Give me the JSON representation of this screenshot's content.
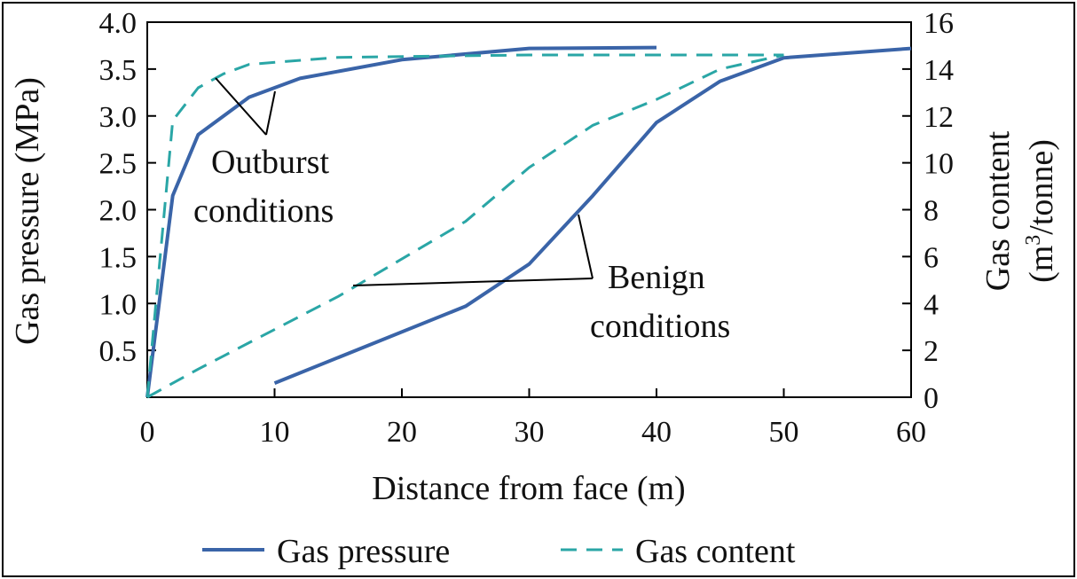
{
  "chart_data": {
    "type": "line",
    "xlabel": "Distance from face (m)",
    "ylabel": "Gas pressure (MPa)",
    "y2label_line1": "Gas content",
    "y2label_line2_prefix": "(m",
    "y2label_line2_sup": "3",
    "y2label_line2_suffix": "/tonne)",
    "xlim": [
      0,
      60
    ],
    "ylim": [
      0,
      4.0
    ],
    "y2lim": [
      0,
      16
    ],
    "x_ticks": [
      "0",
      "10",
      "20",
      "30",
      "40",
      "50",
      "60"
    ],
    "y_ticks": [
      "0.5",
      "1.0",
      "1.5",
      "2.0",
      "2.5",
      "3.0",
      "3.5",
      "4.0"
    ],
    "y2_ticks": [
      "0",
      "2",
      "4",
      "6",
      "8",
      "10",
      "12",
      "14",
      "16"
    ],
    "grid": false,
    "legend": {
      "placement": "bottom",
      "entries": [
        {
          "label": "Gas pressure",
          "style": "solid",
          "color": "#3a64a8"
        },
        {
          "label": "Gas content",
          "style": "dashed",
          "color": "#2aa6a6"
        }
      ]
    },
    "annotations": [
      {
        "line1": "Outburst",
        "line2": "conditions"
      },
      {
        "line1": "Benign",
        "line2": "conditions"
      }
    ],
    "series": [
      {
        "group": "outburst",
        "kind": "Gas pressure",
        "axis": "left",
        "color": "#3a64a8",
        "style": "solid",
        "x": [
          0,
          2,
          4,
          8,
          12,
          20,
          30,
          40
        ],
        "y": [
          0,
          2.15,
          2.8,
          3.2,
          3.4,
          3.6,
          3.72,
          3.73
        ]
      },
      {
        "group": "outburst",
        "kind": "Gas content",
        "axis": "right",
        "color": "#2aa6a6",
        "style": "dashed",
        "x": [
          0,
          2,
          4,
          6,
          8,
          15,
          30,
          50
        ],
        "y": [
          0,
          11.8,
          13.2,
          13.8,
          14.2,
          14.5,
          14.6,
          14.6
        ]
      },
      {
        "group": "benign",
        "kind": "Gas pressure",
        "axis": "left",
        "color": "#3a64a8",
        "style": "solid",
        "x": [
          10,
          25,
          30,
          35,
          40,
          45,
          50,
          60
        ],
        "y": [
          0.15,
          0.97,
          1.42,
          2.15,
          2.93,
          3.37,
          3.62,
          3.72
        ]
      },
      {
        "group": "benign",
        "kind": "Gas content",
        "axis": "right",
        "color": "#2aa6a6",
        "style": "dashed",
        "x": [
          0,
          4,
          15,
          25,
          30,
          35,
          40,
          45,
          50
        ],
        "y": [
          0,
          1.2,
          4.3,
          7.5,
          9.8,
          11.6,
          12.7,
          14.0,
          14.6
        ]
      }
    ]
  }
}
